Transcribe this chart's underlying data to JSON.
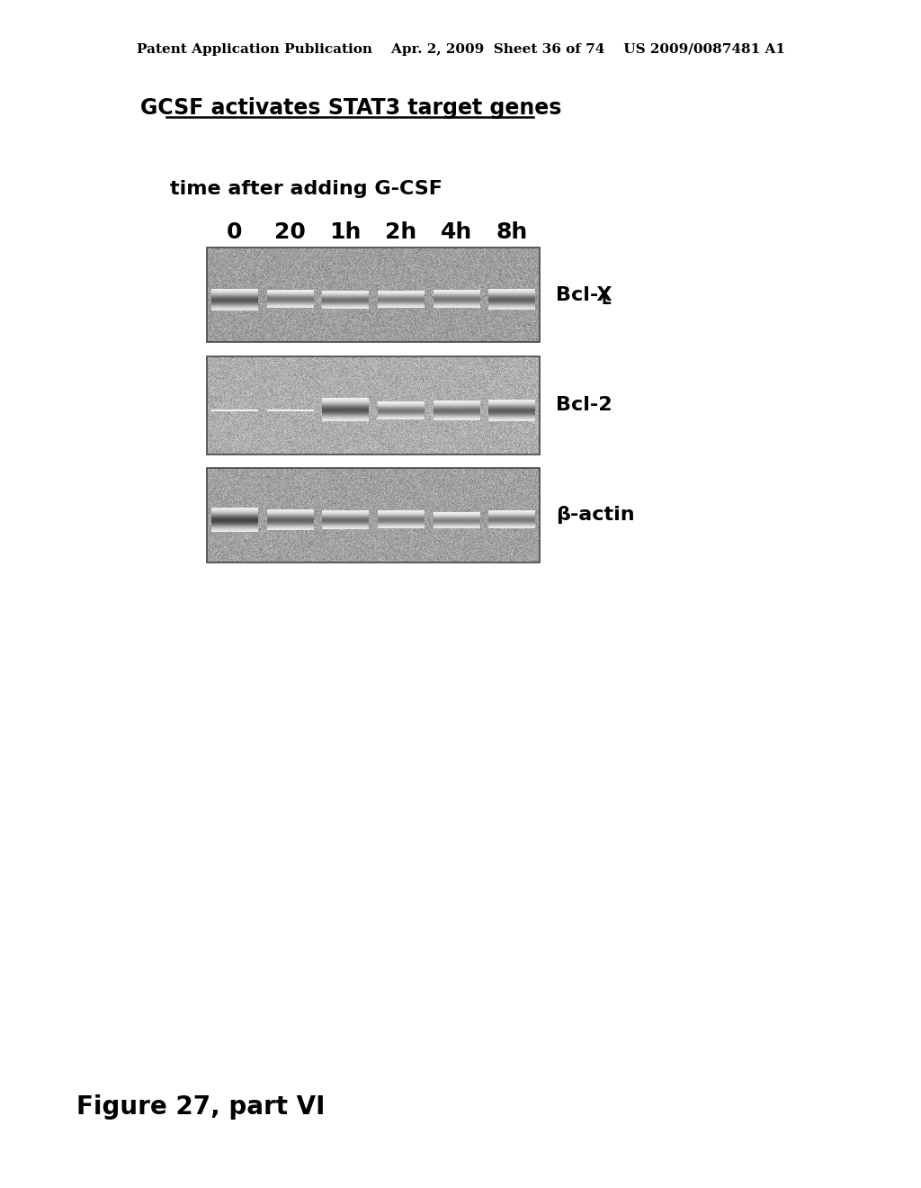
{
  "background_color": "#ffffff",
  "header_text": "Patent Application Publication    Apr. 2, 2009  Sheet 36 of 74    US 2009/0087481 A1",
  "header_fontsize": 11,
  "title": "GCSF activates STAT3 target genes",
  "title_fontsize": 17,
  "subtitle": "time after adding G-CSF",
  "subtitle_fontsize": 16,
  "time_labels": [
    "0",
    "20",
    "1h",
    "2h",
    "4h",
    "8h"
  ],
  "time_label_fontsize": 18,
  "band_label_fontsize": 16,
  "figure_caption": "Figure 27, part VI",
  "figure_caption_fontsize": 20,
  "num_lanes": 6
}
